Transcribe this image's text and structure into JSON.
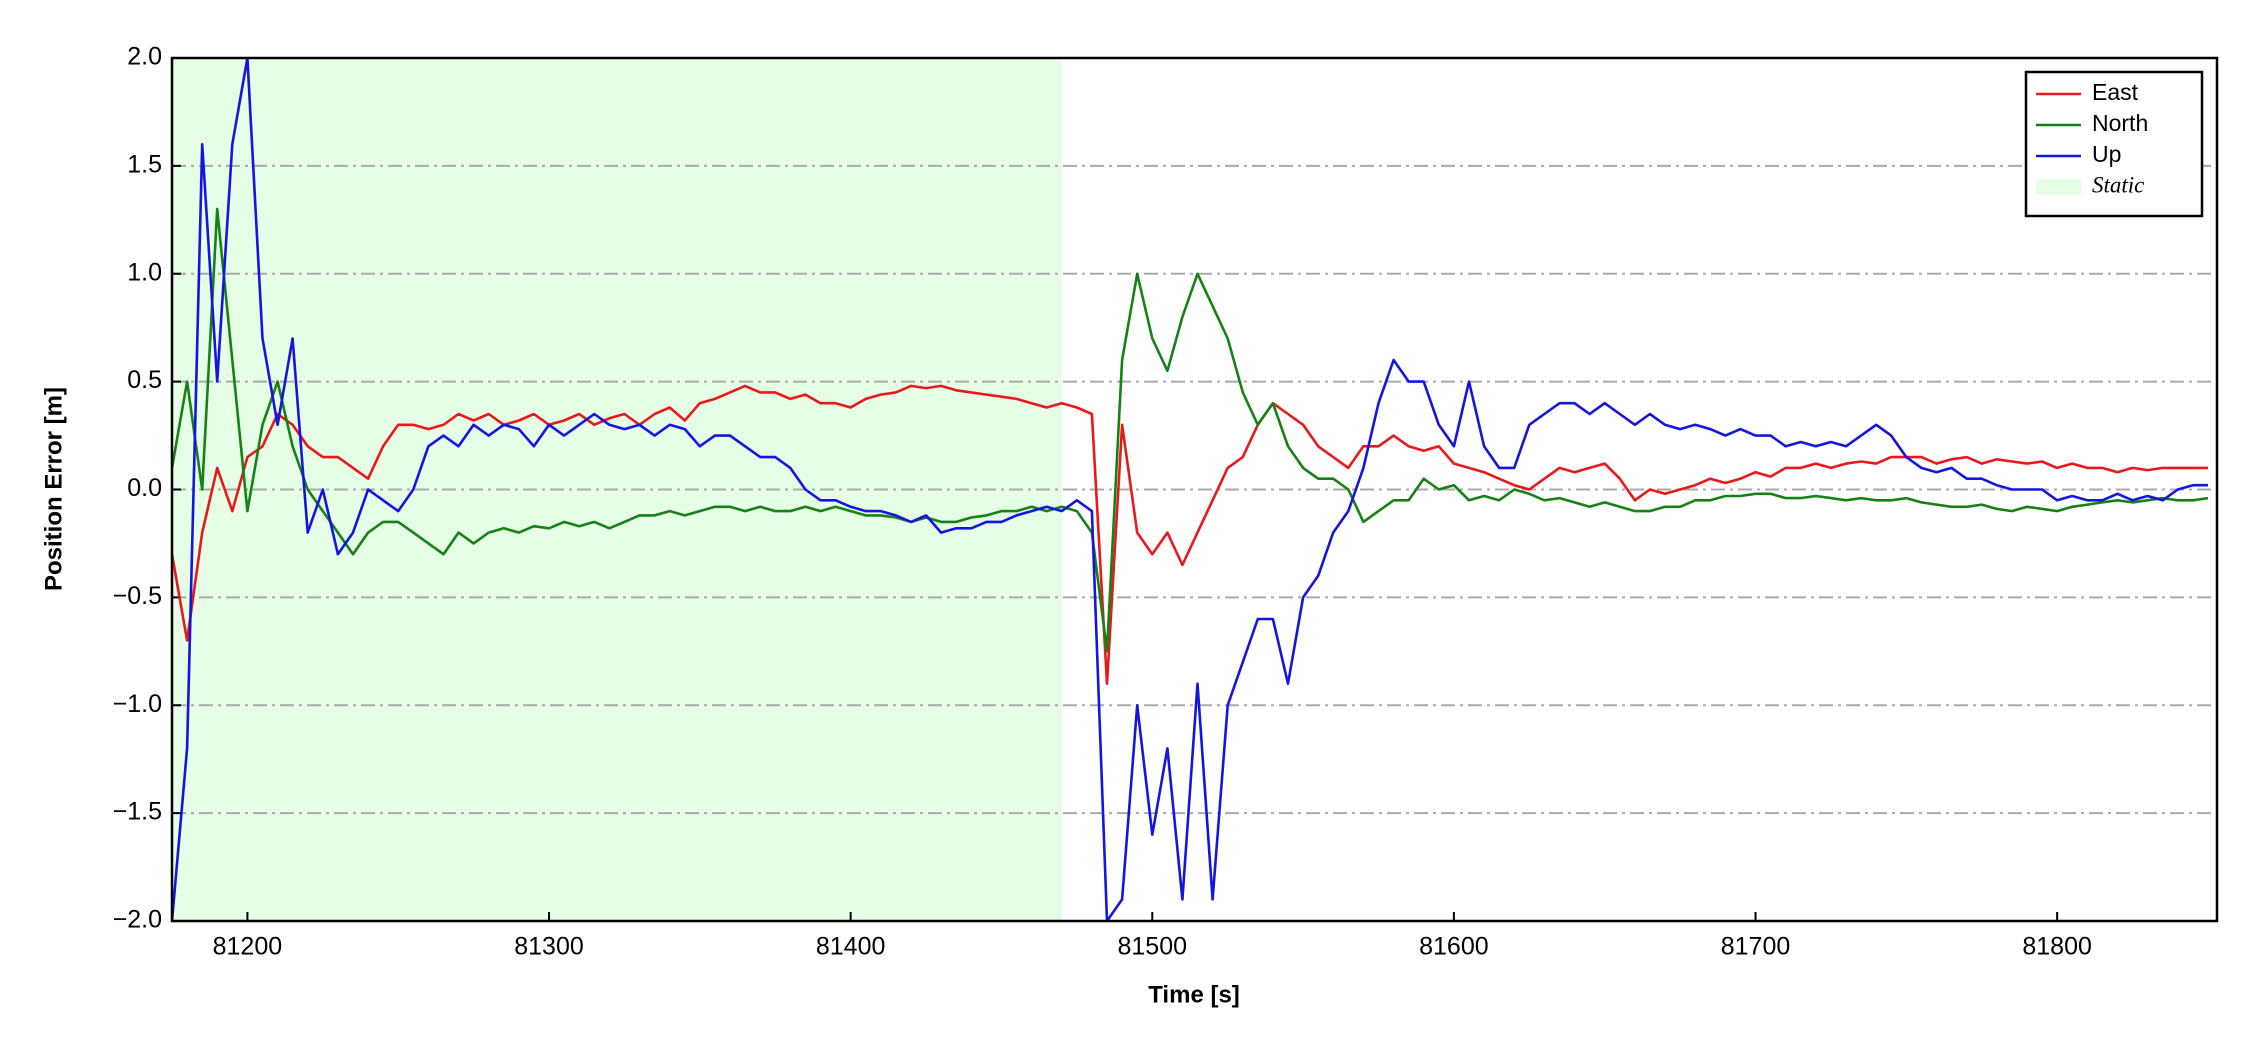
{
  "chart_data": {
    "type": "line",
    "xlabel": "Time [s]",
    "ylabel": "Position Error [m]",
    "xlim": [
      81175,
      81853
    ],
    "ylim": [
      -2,
      2
    ],
    "xticks": [
      81200,
      81300,
      81400,
      81500,
      81600,
      81700,
      81800
    ],
    "yticks": [
      {
        "value": -2,
        "label": "−2.0"
      },
      {
        "value": -1.5,
        "label": "−1.5"
      },
      {
        "value": -1,
        "label": "−1.0"
      },
      {
        "value": -0.5,
        "label": "−0.5"
      },
      {
        "value": 0,
        "label": "0.0"
      },
      0.5,
      {
        "value": 1,
        "label": "1.0"
      },
      1.5,
      {
        "value": 2,
        "label": "2.0"
      }
    ],
    "grid": true,
    "legend_loc": "upper right",
    "shaded": {
      "name": "Static",
      "color": "#e6fde6",
      "xrange": [
        81175,
        81470
      ]
    },
    "x": [
      81175,
      81180,
      81185,
      81190,
      81195,
      81200,
      81205,
      81210,
      81215,
      81220,
      81225,
      81230,
      81235,
      81240,
      81245,
      81250,
      81255,
      81260,
      81265,
      81270,
      81275,
      81280,
      81285,
      81290,
      81295,
      81300,
      81305,
      81310,
      81315,
      81320,
      81325,
      81330,
      81335,
      81340,
      81345,
      81350,
      81355,
      81360,
      81365,
      81370,
      81375,
      81380,
      81385,
      81390,
      81395,
      81400,
      81405,
      81410,
      81415,
      81420,
      81425,
      81430,
      81435,
      81440,
      81445,
      81450,
      81455,
      81460,
      81465,
      81470,
      81475,
      81480,
      81485,
      81490,
      81495,
      81500,
      81505,
      81510,
      81515,
      81520,
      81525,
      81530,
      81535,
      81540,
      81545,
      81550,
      81555,
      81560,
      81565,
      81570,
      81575,
      81580,
      81585,
      81590,
      81595,
      81600,
      81605,
      81610,
      81615,
      81620,
      81625,
      81630,
      81635,
      81640,
      81645,
      81650,
      81655,
      81660,
      81665,
      81670,
      81675,
      81680,
      81685,
      81690,
      81695,
      81700,
      81705,
      81710,
      81715,
      81720,
      81725,
      81730,
      81735,
      81740,
      81745,
      81750,
      81755,
      81760,
      81765,
      81770,
      81775,
      81780,
      81785,
      81790,
      81795,
      81800,
      81805,
      81810,
      81815,
      81820,
      81825,
      81830,
      81835,
      81840,
      81845,
      81850
    ],
    "series": [
      {
        "name": "East",
        "color": "#e8191b",
        "values": [
          -0.3,
          -0.7,
          -0.2,
          0.1,
          -0.1,
          0.15,
          0.2,
          0.35,
          0.3,
          0.2,
          0.15,
          0.15,
          0.1,
          0.05,
          0.2,
          0.3,
          0.3,
          0.28,
          0.3,
          0.35,
          0.32,
          0.35,
          0.3,
          0.32,
          0.35,
          0.3,
          0.32,
          0.35,
          0.3,
          0.33,
          0.35,
          0.3,
          0.35,
          0.38,
          0.32,
          0.4,
          0.42,
          0.45,
          0.48,
          0.45,
          0.45,
          0.42,
          0.44,
          0.4,
          0.4,
          0.38,
          0.42,
          0.44,
          0.45,
          0.48,
          0.47,
          0.48,
          0.46,
          0.45,
          0.44,
          0.43,
          0.42,
          0.4,
          0.38,
          0.4,
          0.38,
          0.35,
          -0.9,
          0.3,
          -0.2,
          -0.3,
          -0.2,
          -0.35,
          -0.2,
          -0.05,
          0.1,
          0.15,
          0.3,
          0.4,
          0.35,
          0.3,
          0.2,
          0.15,
          0.1,
          0.2,
          0.2,
          0.25,
          0.2,
          0.18,
          0.2,
          0.12,
          0.1,
          0.08,
          0.05,
          0.02,
          0,
          0.05,
          0.1,
          0.08,
          0.1,
          0.12,
          0.05,
          -0.05,
          0,
          -0.02,
          0,
          0.02,
          0.05,
          0.03,
          0.05,
          0.08,
          0.06,
          0.1,
          0.1,
          0.12,
          0.1,
          0.12,
          0.13,
          0.12,
          0.15,
          0.15,
          0.15,
          0.12,
          0.14,
          0.15,
          0.12,
          0.14,
          0.13,
          0.12,
          0.13,
          0.1,
          0.12,
          0.1,
          0.1,
          0.08,
          0.1,
          0.09,
          0.1,
          0.1,
          0.1,
          0.1
        ]
      },
      {
        "name": "North",
        "color": "#168216",
        "values": [
          0.1,
          0.5,
          0,
          1.3,
          0.6,
          -0.1,
          0.3,
          0.5,
          0.2,
          0,
          -0.1,
          -0.2,
          -0.3,
          -0.2,
          -0.15,
          -0.15,
          -0.2,
          -0.25,
          -0.3,
          -0.2,
          -0.25,
          -0.2,
          -0.18,
          -0.2,
          -0.17,
          -0.18,
          -0.15,
          -0.17,
          -0.15,
          -0.18,
          -0.15,
          -0.12,
          -0.12,
          -0.1,
          -0.12,
          -0.1,
          -0.08,
          -0.08,
          -0.1,
          -0.08,
          -0.1,
          -0.1,
          -0.08,
          -0.1,
          -0.08,
          -0.1,
          -0.12,
          -0.12,
          -0.13,
          -0.15,
          -0.13,
          -0.15,
          -0.15,
          -0.13,
          -0.12,
          -0.1,
          -0.1,
          -0.08,
          -0.1,
          -0.08,
          -0.1,
          -0.2,
          -0.75,
          0.6,
          1,
          0.7,
          0.55,
          0.8,
          1,
          0.85,
          0.7,
          0.45,
          0.3,
          0.4,
          0.2,
          0.1,
          0.05,
          0.05,
          0,
          -0.15,
          -0.1,
          -0.05,
          -0.05,
          0.05,
          0,
          0.02,
          -0.05,
          -0.03,
          -0.05,
          0,
          -0.02,
          -0.05,
          -0.04,
          -0.06,
          -0.08,
          -0.06,
          -0.08,
          -0.1,
          -0.1,
          -0.08,
          -0.08,
          -0.05,
          -0.05,
          -0.03,
          -0.03,
          -0.02,
          -0.02,
          -0.04,
          -0.04,
          -0.03,
          -0.04,
          -0.05,
          -0.04,
          -0.05,
          -0.05,
          -0.04,
          -0.06,
          -0.07,
          -0.08,
          -0.08,
          -0.07,
          -0.09,
          -0.1,
          -0.08,
          -0.09,
          -0.1,
          -0.08,
          -0.07,
          -0.06,
          -0.05,
          -0.06,
          -0.05,
          -0.04,
          -0.05,
          -0.05,
          -0.04
        ]
      },
      {
        "name": "Up",
        "color": "#1515e0",
        "values": [
          -2,
          -1.2,
          1.6,
          0.5,
          1.6,
          2,
          0.7,
          0.3,
          0.7,
          -0.2,
          0,
          -0.3,
          -0.2,
          0,
          -0.05,
          -0.1,
          0,
          0.2,
          0.25,
          0.2,
          0.3,
          0.25,
          0.3,
          0.28,
          0.2,
          0.3,
          0.25,
          0.3,
          0.35,
          0.3,
          0.28,
          0.3,
          0.25,
          0.3,
          0.28,
          0.2,
          0.25,
          0.25,
          0.2,
          0.15,
          0.15,
          0.1,
          0,
          -0.05,
          -0.05,
          -0.08,
          -0.1,
          -0.1,
          -0.12,
          -0.15,
          -0.12,
          -0.2,
          -0.18,
          -0.18,
          -0.15,
          -0.15,
          -0.12,
          -0.1,
          -0.08,
          -0.1,
          -0.05,
          -0.1,
          -2,
          -1.9,
          -1,
          -1.6,
          -1.2,
          -1.9,
          -0.9,
          -1.9,
          -1,
          -0.8,
          -0.6,
          -0.6,
          -0.9,
          -0.5,
          -0.4,
          -0.2,
          -0.1,
          0.1,
          0.4,
          0.6,
          0.5,
          0.5,
          0.3,
          0.2,
          0.5,
          0.2,
          0.1,
          0.1,
          0.3,
          0.35,
          0.4,
          0.4,
          0.35,
          0.4,
          0.35,
          0.3,
          0.35,
          0.3,
          0.28,
          0.3,
          0.28,
          0.25,
          0.28,
          0.25,
          0.25,
          0.2,
          0.22,
          0.2,
          0.22,
          0.2,
          0.25,
          0.3,
          0.25,
          0.15,
          0.1,
          0.08,
          0.1,
          0.05,
          0.05,
          0.02,
          0,
          0,
          0,
          -0.05,
          -0.03,
          -0.05,
          -0.05,
          -0.02,
          -0.05,
          -0.03,
          -0.05,
          0,
          0.02,
          0.02
        ]
      }
    ]
  }
}
